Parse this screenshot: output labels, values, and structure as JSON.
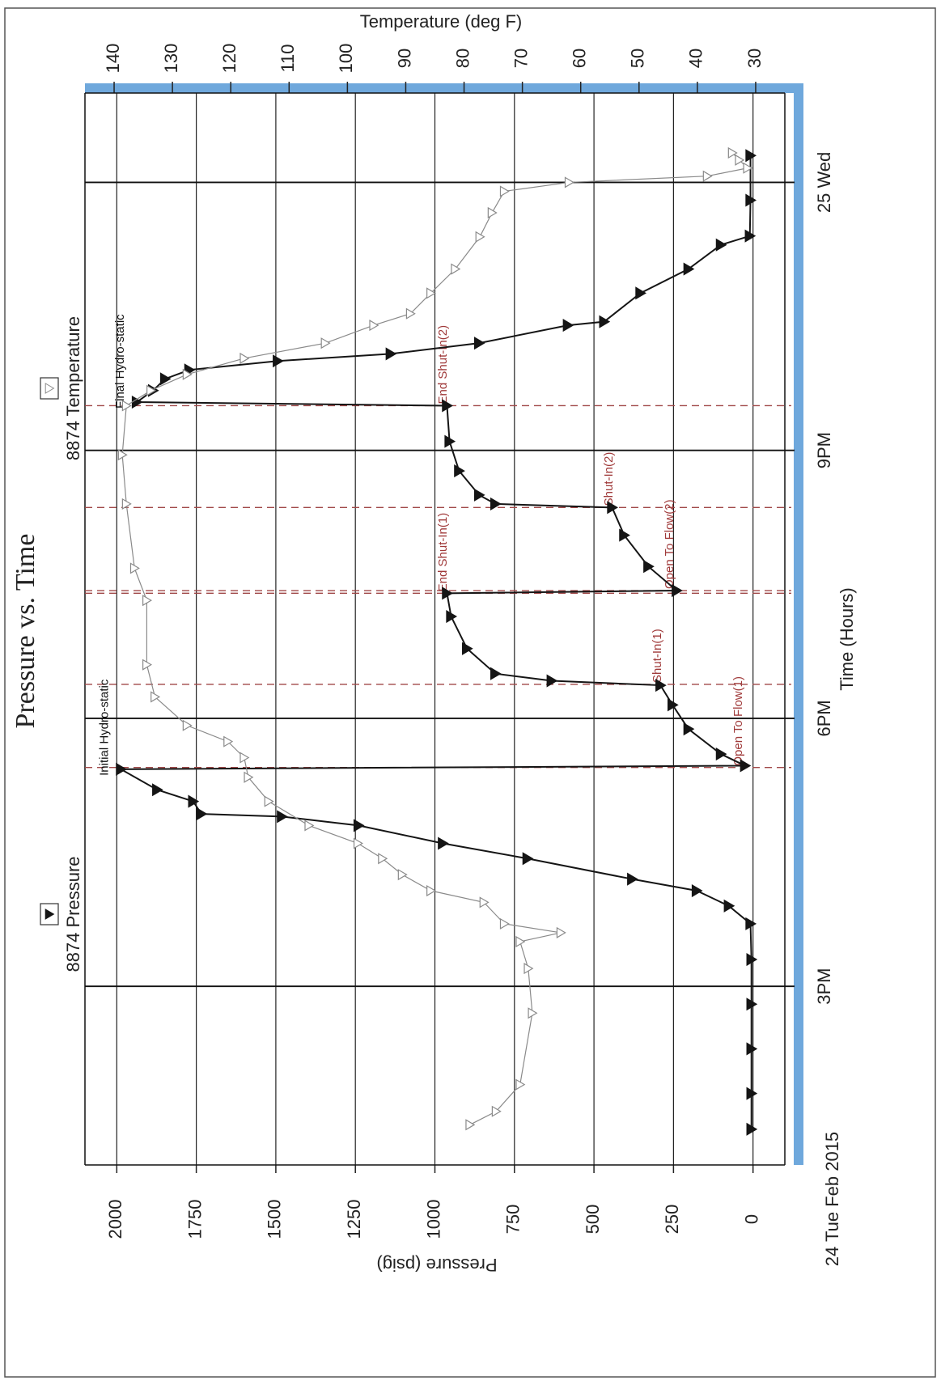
{
  "chart_data": {
    "type": "line",
    "title": "Pressure vs. Time",
    "x_label": "Time (Hours)",
    "y_label": "Pressure (psig)",
    "y2_label": "Temperature (deg F)",
    "date_label": "24 Tue Feb 2015",
    "xlim": [
      13,
      25
    ],
    "xticks": [
      {
        "value": 15,
        "label": "3PM"
      },
      {
        "value": 18,
        "label": "6PM"
      },
      {
        "value": 21,
        "label": "9PM"
      },
      {
        "value": 24,
        "label": "25 Wed"
      }
    ],
    "ylim": [
      -100,
      2100
    ],
    "yticks": [
      0,
      250,
      500,
      750,
      1000,
      1250,
      1500,
      1750,
      2000
    ],
    "y2lim": [
      25,
      145
    ],
    "y2ticks": [
      30,
      40,
      50,
      60,
      70,
      80,
      90,
      100,
      110,
      120,
      130,
      140
    ],
    "grid": true,
    "series": [
      {
        "name": "8874 Pressure",
        "color": "#151515",
        "marker": "filled",
        "x": [
          13.4,
          13.8,
          14.3,
          14.8,
          15.3,
          15.7,
          15.9,
          16.07,
          16.2,
          16.43,
          16.6,
          16.8,
          16.9,
          16.93,
          17.07,
          17.2,
          17.43,
          17.47,
          17.6,
          17.88,
          18.15,
          18.37,
          18.42,
          18.5,
          18.78,
          19.14,
          19.4,
          19.43,
          19.7,
          20.05,
          20.36,
          20.4,
          20.5,
          20.77,
          21.1,
          21.5,
          21.54,
          21.67,
          21.8,
          21.9,
          22.0,
          22.08,
          22.2,
          22.4,
          22.44,
          22.76,
          23.03,
          23.3,
          23.4,
          23.8,
          24.3
        ],
        "values": [
          5,
          5,
          5,
          5,
          5,
          8,
          76,
          177,
          380,
          709,
          975,
          1240,
          1481,
          1734,
          1760,
          1873,
          1987,
          25,
          101,
          203,
          253,
          291,
          633,
          810,
          899,
          949,
          962,
          240,
          329,
          405,
          443,
          810,
          861,
          924,
          954,
          962,
          1937,
          1886,
          1848,
          1772,
          1494,
          1139,
          861,
          582,
          468,
          354,
          203,
          101,
          10,
          8,
          8
        ]
      },
      {
        "name": "8874 Temperature",
        "color": "#8a8a8a",
        "marker": "open",
        "axis": "y2",
        "x": [
          13.45,
          13.6,
          13.9,
          14.7,
          15.2,
          15.5,
          15.6,
          15.7,
          15.94,
          16.07,
          16.25,
          16.43,
          16.6,
          16.8,
          17.07,
          17.34,
          17.56,
          17.74,
          17.92,
          18.24,
          18.6,
          19.32,
          19.68,
          20.4,
          20.95,
          21.5,
          21.67,
          21.85,
          22.03,
          22.2,
          22.4,
          22.53,
          22.76,
          23.03,
          23.39,
          23.66,
          23.9,
          24.0,
          24.07,
          24.16,
          24.25,
          24.33
        ],
        "values": [
          79,
          74.5,
          70.4,
          68.3,
          69,
          70.4,
          63.4,
          73.1,
          76.6,
          85.7,
          90.6,
          94,
          98.2,
          106.6,
          113.5,
          117,
          117.7,
          120.5,
          127.5,
          133,
          134.4,
          134.4,
          136.5,
          137.9,
          138.6,
          137.9,
          133.7,
          127.5,
          117.7,
          103.8,
          95.5,
          89.2,
          85.7,
          81.5,
          77.3,
          75.2,
          73.1,
          62,
          38.3,
          31.4,
          32.8,
          34
        ]
      }
    ],
    "events": [
      {
        "label": "Open To Flow(1)",
        "x": 17.45,
        "y": 40
      },
      {
        "label": "Shut-In(1)",
        "x": 18.38,
        "y": 294
      },
      {
        "label": "End Shut-In(1)",
        "x": 19.4,
        "y": 968
      },
      {
        "label": "Open To Flow(2)",
        "x": 19.43,
        "y": 256
      },
      {
        "label": "Shut-In(2)",
        "x": 20.36,
        "y": 447
      },
      {
        "label": "End Shut-In(2)",
        "x": 21.5,
        "y": 968
      }
    ],
    "annotations": [
      {
        "label": "Initial Hydro-static",
        "x": 17.43,
        "y": 1987
      },
      {
        "label": "Final Hydro-static",
        "x": 21.54,
        "y": 1937
      }
    ]
  }
}
